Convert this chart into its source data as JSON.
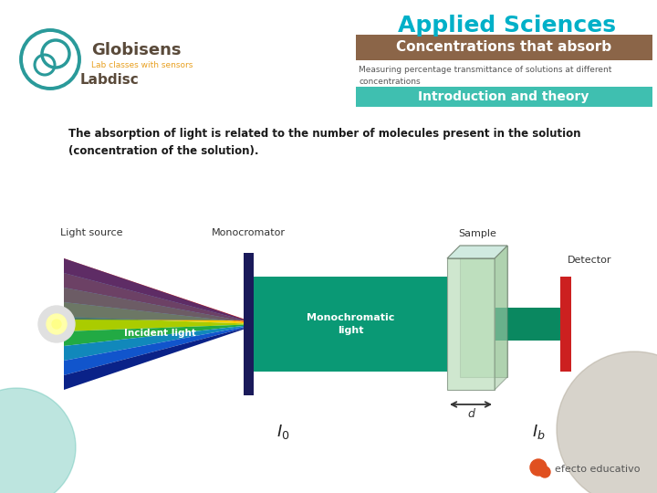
{
  "bg_color": "#ffffff",
  "applied_sciences_color": "#00b0c8",
  "title_bar_color": "#8B6548",
  "title_text": "Concentrations that absorb",
  "subtitle_text": "Measuring percentage transmittance of solutions at different\nconcentrations",
  "section_bar_color": "#3fbfb0",
  "section_text": "Introduction and theory",
  "body_text": "The absorption of light is related to the number of molecules present in the solution\n(concentration of the solution).",
  "globisens_color": "#2a9a9a",
  "globisens_text_color": "#5a4a3a",
  "lab_classes_color": "#e8a020",
  "teal_circle_color": "#5abfb0",
  "brown_circle_color": "#b0a898",
  "efecto_color": "#e05020",
  "cone_colors_top": [
    "#0a0a6a",
    "#1030bb",
    "#1080cc",
    "#10aa88",
    "#88cc00",
    "#ffdd00",
    "#ff8800",
    "#ff2200"
  ],
  "cone_colors_bottom": [
    "#1030bb",
    "#1080cc",
    "#10aa88",
    "#88cc00",
    "#ffdd00",
    "#ff8800",
    "#ff2200",
    "#cc1500"
  ],
  "beam_color": "#0a9975",
  "beam_narrow_color": "#0a8860",
  "mono_bar_color": "#1a1a5a",
  "cuvette_front": "#b8ddb8",
  "cuvette_back": "#90c890",
  "cuvette_top": "#d0eae0",
  "detector_color": "#cc2020",
  "bulb_color": "#e0e0e0",
  "bulb_glow": "#ffffaa"
}
